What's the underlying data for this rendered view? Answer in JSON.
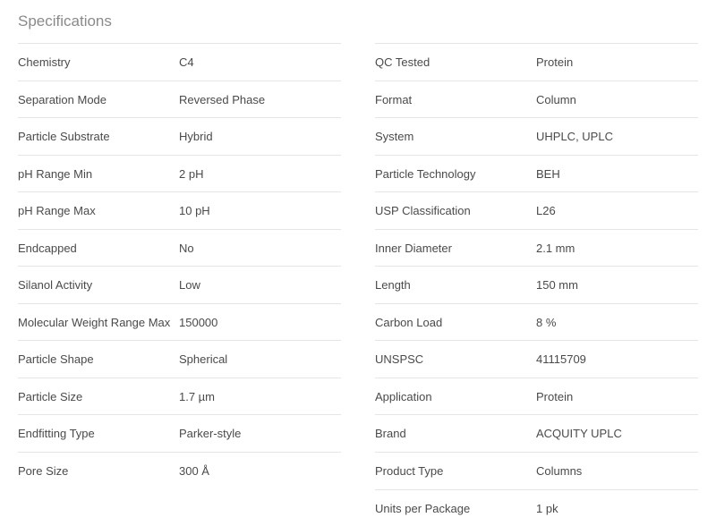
{
  "title": "Specifications",
  "left": [
    {
      "label": "Chemistry",
      "value": "C4"
    },
    {
      "label": "Separation Mode",
      "value": "Reversed Phase"
    },
    {
      "label": "Particle Substrate",
      "value": "Hybrid"
    },
    {
      "label": "pH Range Min",
      "value": "2 pH"
    },
    {
      "label": "pH Range Max",
      "value": "10 pH"
    },
    {
      "label": "Endcapped",
      "value": "No"
    },
    {
      "label": "Silanol Activity",
      "value": "Low"
    },
    {
      "label": "Molecular Weight Range Max",
      "value": "150000"
    },
    {
      "label": "Particle Shape",
      "value": "Spherical"
    },
    {
      "label": "Particle Size",
      "value": "1.7 µm"
    },
    {
      "label": "Endfitting Type",
      "value": "Parker-style"
    },
    {
      "label": "Pore Size",
      "value": "300 Å"
    }
  ],
  "right": [
    {
      "label": "QC Tested",
      "value": "Protein"
    },
    {
      "label": "Format",
      "value": "Column"
    },
    {
      "label": "System",
      "value": "UHPLC, UPLC"
    },
    {
      "label": "Particle Technology",
      "value": "BEH"
    },
    {
      "label": "USP Classification",
      "value": "L26"
    },
    {
      "label": "Inner Diameter",
      "value": "2.1 mm"
    },
    {
      "label": "Length",
      "value": "150 mm"
    },
    {
      "label": "Carbon Load",
      "value": "8 %"
    },
    {
      "label": "UNSPSC",
      "value": "41115709"
    },
    {
      "label": "Application",
      "value": "Protein"
    },
    {
      "label": "Brand",
      "value": "ACQUITY UPLC"
    },
    {
      "label": "Product Type",
      "value": "Columns"
    },
    {
      "label": "Units per Package",
      "value": "1 pk"
    }
  ]
}
